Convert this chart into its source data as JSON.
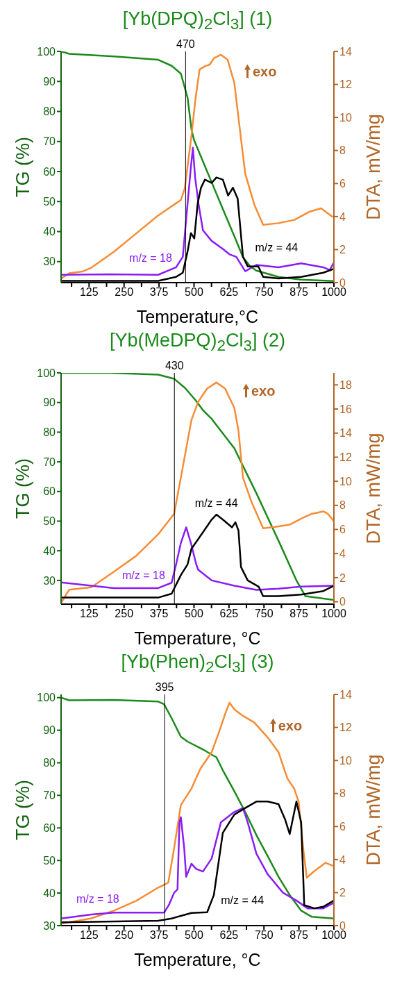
{
  "chart_data": [
    {
      "type": "line",
      "title": "[Yb(DPQ)$_{2}$Cl$_{3}$] (1)",
      "xlabel": "Temperature,°C",
      "ylabel": "TG (%)",
      "y2label": "DTA, mV/mg",
      "xlim": [
        25,
        1000
      ],
      "xticks": [
        {
          "value": 62.5,
          "label": null
        },
        125,
        {
          "value": 187.5,
          "label": null
        },
        250,
        {
          "value": 312.5,
          "label": null
        },
        375,
        {
          "value": 437.5,
          "label": null
        },
        500,
        {
          "value": 562.5,
          "label": null
        },
        625,
        {
          "value": 687.5,
          "label": null
        },
        750,
        {
          "value": 812.5,
          "label": null
        },
        875,
        {
          "value": 937.5,
          "label": null
        },
        1000
      ],
      "ylim": [
        23,
        100
      ],
      "yticks": [
        30,
        40,
        50,
        60,
        70,
        80,
        90,
        100
      ],
      "y2lim": [
        0,
        14
      ],
      "y2ticks": [
        0,
        2,
        4,
        6,
        8,
        10,
        12,
        14
      ],
      "ref_lines": [
        {
          "axis": "x",
          "value": 470,
          "label": "470",
          "color": "#000000"
        }
      ],
      "annotations": [
        "exo"
      ],
      "series": [
        {
          "color": "#1b8a1b",
          "x": [
            25,
            54,
            214,
            372,
            420,
            453,
            477,
            491,
            500,
            556,
            603,
            644,
            675,
            700,
            723,
            802,
            883,
            1000
          ],
          "values": [
            100,
            99.2,
            98.3,
            97.2,
            95.2,
            92.6,
            84.6,
            74,
            70.5,
            58,
            47.5,
            38.5,
            31.5,
            28.5,
            27,
            24.9,
            24,
            23.5
          ]
        },
        {
          "color": "#f68c35",
          "axis": "y2",
          "x": [
            25,
            54,
            101,
            133,
            214,
            293,
            372,
            453,
            467,
            491,
            505,
            520,
            539,
            556,
            572,
            596,
            620,
            644,
            668,
            683,
            716,
            747,
            802,
            859,
            914,
            954,
            993,
            1000
          ],
          "values": [
            0.24,
            0.57,
            0.67,
            0.9,
            1.87,
            2.97,
            4.07,
            5.0,
            5.7,
            8.9,
            11.1,
            12.9,
            13.1,
            13.2,
            13.6,
            13.8,
            13.5,
            12.1,
            8.7,
            6.6,
            4.7,
            3.5,
            3.6,
            3.8,
            4.3,
            4.5,
            4.0,
            4.0
          ]
        },
        {
          "name": "m/z = 18",
          "color": "#8a1cf5",
          "x": [
            25,
            200,
            372,
            436,
            460,
            477,
            489,
            496,
            504,
            516,
            532,
            563,
            603,
            627,
            651,
            683,
            723,
            802,
            883,
            962,
            985,
            1000
          ],
          "values": [
            25.6,
            25.8,
            25.6,
            28.1,
            31.6,
            49.3,
            61.6,
            67.9,
            58,
            49.3,
            40.4,
            36.9,
            34.2,
            32.4,
            31.6,
            26.8,
            28.9,
            28.1,
            29.4,
            28.1,
            27.2,
            29.7
          ]
        },
        {
          "name": "m/z = 44",
          "color": "#000000",
          "x": [
            25,
            372,
            436,
            460,
            477,
            489,
            501,
            513,
            525,
            539,
            563,
            580,
            603,
            622,
            639,
            656,
            675,
            692,
            730,
            747,
            802,
            883,
            962,
            1000
          ],
          "values": [
            23.6,
            23.6,
            24.9,
            26.3,
            33.4,
            39.5,
            37.7,
            49.3,
            54.6,
            57.3,
            56.2,
            58,
            57.3,
            52,
            54.6,
            51,
            31.6,
            28.4,
            28.4,
            24.9,
            24.4,
            24.9,
            26.3,
            27.6
          ]
        }
      ]
    },
    {
      "type": "line",
      "title": "[Yb(MeDPQ)$_{2}$Cl$_{3}$] (2)",
      "xlabel": "Temperature, °C",
      "ylabel": "TG (%)",
      "y2label": "DTA, mW/mg",
      "xlim": [
        25,
        1000
      ],
      "xticks": [
        {
          "value": 62.5,
          "label": null
        },
        125,
        {
          "value": 187.5,
          "label": null
        },
        250,
        {
          "value": 312.5,
          "label": null
        },
        375,
        {
          "value": 437.5,
          "label": null
        },
        500,
        {
          "value": 562.5,
          "label": null
        },
        625,
        {
          "value": 687.5,
          "label": null
        },
        750,
        {
          "value": 812.5,
          "label": null
        },
        875,
        {
          "value": 937.5,
          "label": null
        },
        1000
      ],
      "ylim": [
        22,
        100
      ],
      "yticks": [
        30,
        40,
        50,
        60,
        70,
        80,
        90,
        100
      ],
      "y2lim": [
        -0.2,
        19
      ],
      "y2ticks": [
        0,
        2,
        4,
        6,
        8,
        10,
        12,
        14,
        16,
        18
      ],
      "ref_lines": [
        {
          "axis": "x",
          "value": 430,
          "label": "430",
          "color": "#000000"
        }
      ],
      "annotations": [
        "exo"
      ],
      "series": [
        {
          "color": "#1b8a1b",
          "x": [
            25,
            200,
            372,
            429,
            468,
            508,
            532,
            563,
            644,
            723,
            802,
            866,
            898,
            1000
          ],
          "values": [
            100,
            100,
            99.4,
            98,
            94.9,
            90.5,
            87.4,
            84.5,
            74.6,
            59.4,
            43.4,
            30,
            24.7,
            23.4
          ]
        },
        {
          "color": "#f68c35",
          "axis": "y2",
          "x": [
            25,
            54,
            133,
            214,
            293,
            372,
            429,
            453,
            491,
            515,
            547,
            580,
            611,
            644,
            659,
            675,
            707,
            747,
            787,
            842,
            883,
            921,
            962,
            978,
            1000
          ],
          "values": [
            -0.1,
            1.0,
            1.2,
            2.5,
            3.8,
            5.6,
            7.3,
            10.3,
            15.1,
            16.6,
            17.7,
            18.2,
            17.7,
            16.1,
            14.2,
            10.3,
            8.2,
            6.1,
            6.2,
            6.4,
            6.9,
            7.3,
            7.5,
            7.3,
            6.7
          ]
        },
        {
          "name": "m/z = 18",
          "color": "#8a1cf5",
          "x": [
            25,
            133,
            214,
            372,
            420,
            436,
            453,
            472,
            489,
            508,
            515,
            563,
            644,
            723,
            802,
            883,
            1000
          ],
          "values": [
            29.3,
            28.2,
            27.4,
            27.4,
            29.2,
            35.4,
            42.6,
            47.9,
            42.6,
            35.4,
            33.6,
            30,
            28.2,
            26.8,
            27.2,
            27.9,
            28.2
          ]
        },
        {
          "name": "m/z = 44",
          "color": "#000000",
          "x": [
            25,
            372,
            420,
            453,
            477,
            491,
            523,
            563,
            580,
            603,
            636,
            648,
            659,
            668,
            692,
            731,
            747,
            802,
            883,
            962,
            1000
          ],
          "values": [
            24.2,
            24.2,
            25.5,
            31.8,
            35.4,
            40.7,
            45,
            50.5,
            52.2,
            50.5,
            47.9,
            49.6,
            46.8,
            34.5,
            30,
            27.9,
            24.7,
            24.7,
            25.2,
            26.4,
            28.2
          ]
        }
      ]
    },
    {
      "type": "line",
      "title": "[Yb(Phen)$_{2}$Cl$_{3}$] (3)",
      "xlabel": "Temperature, °C",
      "ylabel": "TG (%)",
      "y2label": "DTA, mW/mg",
      "xlim": [
        25,
        1000
      ],
      "xticks": [
        {
          "value": 62.5,
          "label": null
        },
        125,
        {
          "value": 187.5,
          "label": null
        },
        250,
        {
          "value": 312.5,
          "label": null
        },
        375,
        {
          "value": 437.5,
          "label": null
        },
        500,
        {
          "value": 562.5,
          "label": null
        },
        625,
        {
          "value": 687.5,
          "label": null
        },
        750,
        {
          "value": 812.5,
          "label": null
        },
        875,
        {
          "value": 937.5,
          "label": null
        },
        1000
      ],
      "ylim": [
        30,
        101
      ],
      "yticks": [
        30,
        40,
        50,
        60,
        70,
        80,
        90,
        100
      ],
      "y2lim": [
        0,
        14
      ],
      "y2ticks": [
        0,
        2,
        4,
        6,
        8,
        10,
        12,
        14
      ],
      "ref_lines": [
        {
          "axis": "x",
          "value": 395,
          "label": "395",
          "color": "#000000"
        }
      ],
      "annotations": [
        "exo"
      ],
      "series": [
        {
          "color": "#1b8a1b",
          "x": [
            25,
            54,
            214,
            372,
            393,
            420,
            453,
            477,
            532,
            563,
            580,
            603,
            644,
            683,
            723,
            763,
            802,
            842,
            883,
            921,
            1000
          ],
          "values": [
            100,
            99.2,
            99.3,
            98.8,
            98,
            93.7,
            88,
            86.5,
            84.1,
            82.5,
            81.7,
            77.7,
            71.3,
            64.9,
            57.8,
            51.4,
            45,
            39.4,
            34.6,
            32.7,
            32.2
          ]
        },
        {
          "color": "#f68c35",
          "axis": "y2",
          "x": [
            25,
            133,
            214,
            293,
            372,
            393,
            408,
            429,
            453,
            491,
            523,
            563,
            587,
            611,
            627,
            644,
            675,
            715,
            763,
            802,
            834,
            858,
            874,
            890,
            903,
            930,
            970,
            1000
          ],
          "values": [
            0.12,
            0.44,
            0.91,
            1.5,
            2.3,
            2.47,
            2.6,
            4.7,
            7.3,
            8.3,
            9.5,
            10.5,
            11.6,
            12.8,
            13.5,
            13.1,
            12.7,
            12.3,
            11.4,
            10.5,
            8.9,
            8.3,
            7.5,
            4.7,
            2.9,
            3.3,
            3.8,
            3.6
          ]
        },
        {
          "name": "m/z = 18",
          "color": "#8a1cf5",
          "x": [
            25,
            133,
            214,
            393,
            410,
            429,
            441,
            448,
            453,
            465,
            472,
            491,
            508,
            532,
            563,
            596,
            644,
            675,
            692,
            723,
            763,
            818,
            866,
            906,
            962,
            1000
          ],
          "values": [
            32.2,
            33.4,
            34,
            34,
            36.3,
            40.1,
            41.1,
            61.7,
            63.3,
            53.8,
            45,
            49,
            47.4,
            46.6,
            50.6,
            61.7,
            64.9,
            66.1,
            61.7,
            52.1,
            45.8,
            40.1,
            37.7,
            35.3,
            35.3,
            37
          ]
        },
        {
          "name": "m/z = 44",
          "color": "#000000",
          "x": [
            25,
            372,
            420,
            453,
            491,
            547,
            571,
            603,
            644,
            683,
            723,
            763,
            802,
            826,
            842,
            866,
            883,
            894,
            930,
            962,
            1000
          ],
          "values": [
            31,
            31.5,
            32.2,
            33,
            33.9,
            34.1,
            39.4,
            58.5,
            64.1,
            66.1,
            68.1,
            68.1,
            67.3,
            62.5,
            58.1,
            68.1,
            61.7,
            36.3,
            35.3,
            35.8,
            37.7
          ]
        }
      ]
    }
  ]
}
